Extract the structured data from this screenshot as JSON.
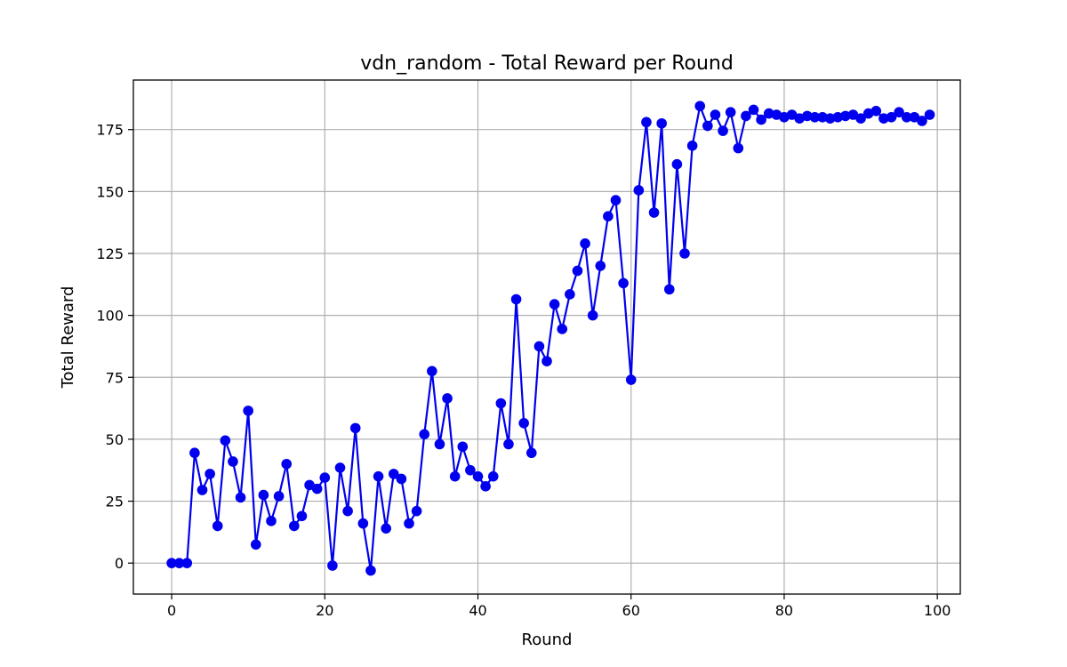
{
  "chart_data": {
    "type": "line",
    "title": "vdn_random - Total Reward per Round",
    "xlabel": "Round",
    "ylabel": "Total Reward",
    "xlim": [
      -5,
      103
    ],
    "ylim": [
      -12.5,
      195
    ],
    "xticks": [
      0,
      20,
      40,
      60,
      80,
      100
    ],
    "yticks": [
      0,
      25,
      50,
      75,
      100,
      125,
      150,
      175
    ],
    "grid": true,
    "marker": "circle",
    "color": "#0000ee",
    "series": [
      {
        "x": [
          0,
          1,
          2,
          3,
          4,
          5,
          6,
          7,
          8,
          9,
          10,
          11,
          12,
          13,
          14,
          15,
          16,
          17,
          18,
          19,
          20,
          21,
          22,
          23,
          24,
          25,
          26,
          27,
          28,
          29,
          30,
          31,
          32,
          33,
          34,
          35,
          36,
          37,
          38,
          39,
          40,
          41,
          42,
          43,
          44,
          45,
          46,
          47,
          48,
          49,
          50,
          51,
          52,
          53,
          54,
          55,
          56,
          57,
          58,
          59,
          60,
          61,
          62,
          63,
          64,
          65,
          66,
          67,
          68,
          69,
          70,
          71,
          72,
          73,
          74,
          75,
          76,
          77,
          78,
          79,
          80,
          81,
          82,
          83,
          84,
          85,
          86,
          87,
          88,
          89,
          90,
          91,
          92,
          93,
          94,
          95,
          96,
          97,
          98,
          99
        ],
        "y": [
          0,
          0,
          0,
          44.5,
          29.5,
          36,
          15,
          49.5,
          41,
          26.5,
          61.5,
          7.5,
          27.5,
          17,
          27,
          40,
          15,
          19,
          31.5,
          30,
          34.5,
          -1,
          38.5,
          21,
          54.5,
          16,
          -3,
          35,
          14,
          36,
          34,
          16,
          21,
          52,
          77.5,
          48,
          66.5,
          35,
          47,
          37.5,
          35,
          31,
          35,
          64.5,
          48,
          106.5,
          56.5,
          44.5,
          87.5,
          81.5,
          104.5,
          94.5,
          108.5,
          118,
          129,
          100,
          120,
          140,
          146.5,
          113,
          74,
          150.5,
          178,
          141.5,
          177.5,
          110.5,
          161,
          125,
          168.5,
          184.5,
          176.5,
          181,
          174.5,
          182,
          167.5,
          180.5,
          183,
          179,
          181.5,
          181,
          180,
          181,
          179.5,
          180.5,
          180,
          180,
          179.5,
          180,
          180.5,
          181,
          179.5,
          181.5,
          182.5,
          179.5,
          180,
          182,
          180,
          180,
          178.5,
          181
        ]
      }
    ]
  }
}
